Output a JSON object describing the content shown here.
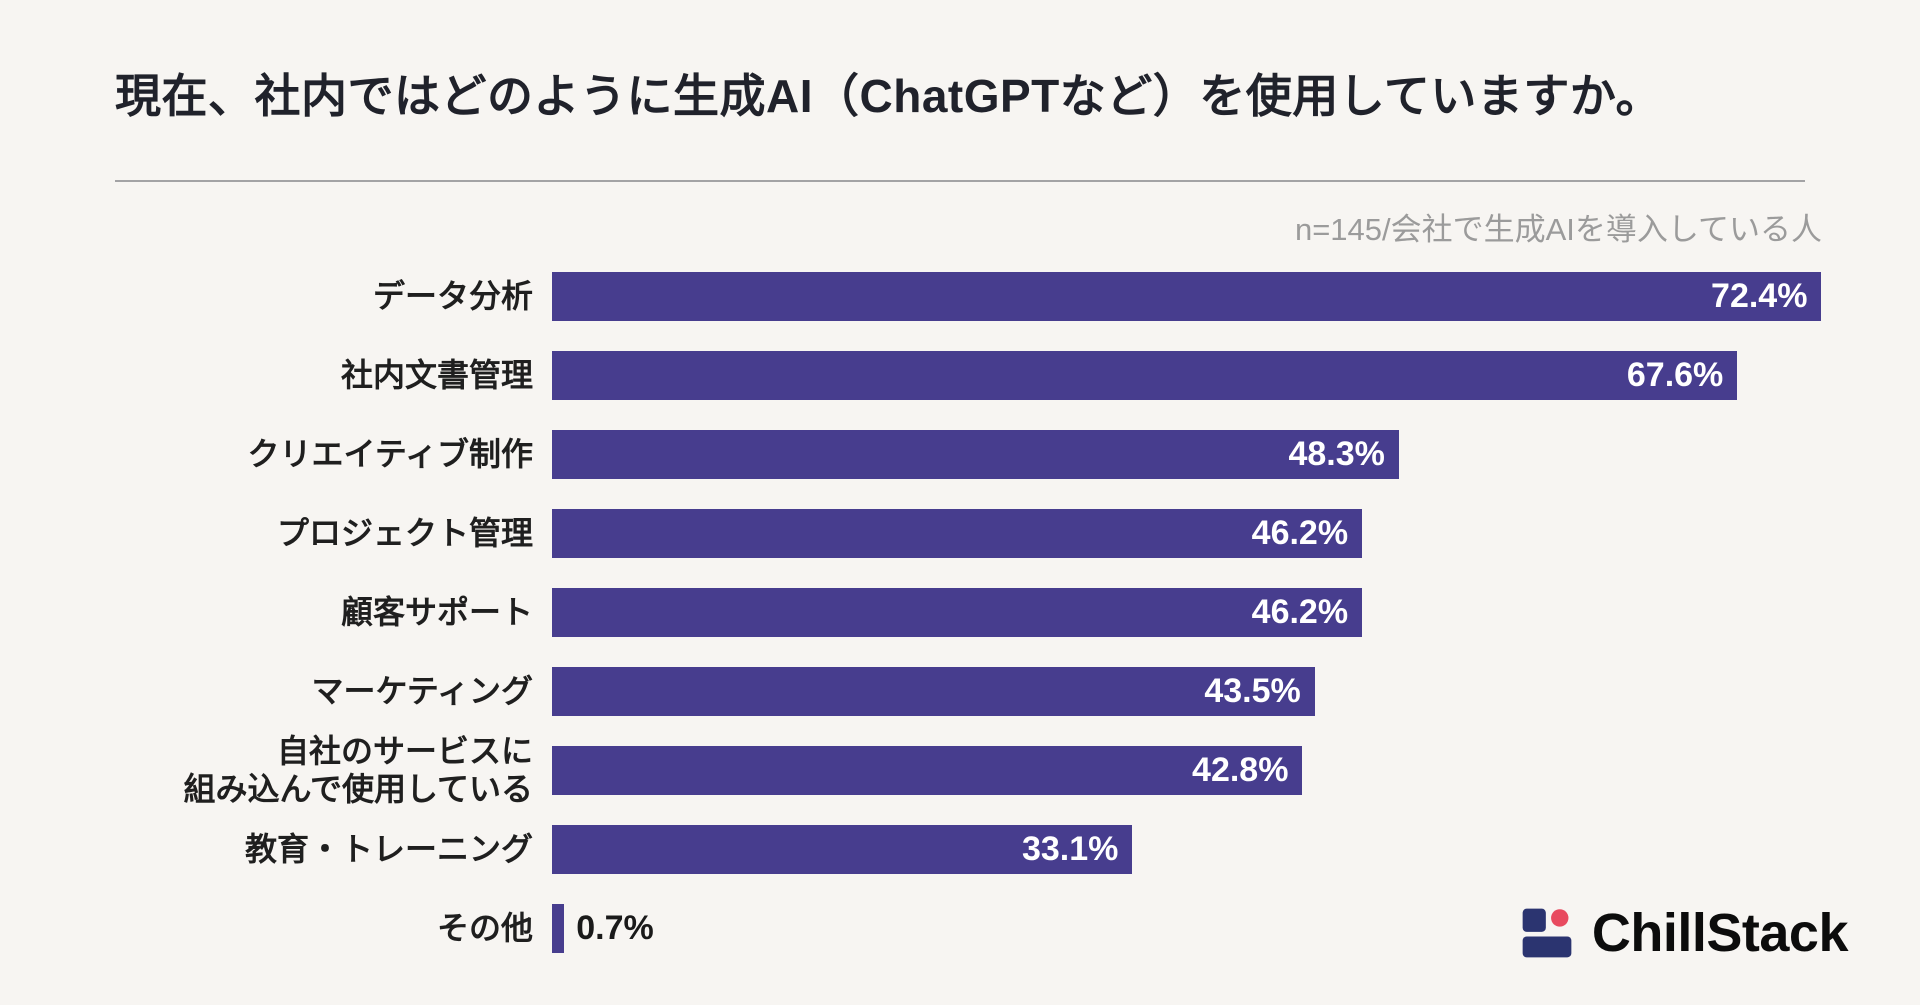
{
  "page": {
    "background": "#f7f5f2"
  },
  "header": {
    "title": "現在、社内ではどのように生成AI（ChatGPTなど）を使用していますか。",
    "sample_note": "n=145/会社で生成AIを導入している人"
  },
  "chart_data": {
    "type": "bar",
    "orientation": "horizontal",
    "title": "現在、社内ではどのように生成AI（ChatGPTなど）を使用していますか。",
    "annotation": "n=145/会社で生成AIを導入している人",
    "categories": [
      "データ分析",
      "社内文書管理",
      "クリエイティブ制作",
      "プロジェクト管理",
      "顧客サポート",
      "マーケティング",
      "自社のサービスに\n組み込んで使用している",
      "教育・トレーニング",
      "その他"
    ],
    "values": [
      72.4,
      67.6,
      48.3,
      46.2,
      46.2,
      43.5,
      42.8,
      33.1,
      0.7
    ],
    "value_labels": [
      "72.4%",
      "67.6%",
      "48.3%",
      "46.2%",
      "46.2%",
      "43.5%",
      "42.8%",
      "33.1%",
      "0.7%"
    ],
    "unit": "%",
    "xlim": [
      0,
      100
    ],
    "grid": false,
    "legend": false,
    "bar_color": "#473d8e",
    "value_label_color_inside": "#ffffff",
    "value_label_color_outside": "#1a1a1a"
  },
  "logo": {
    "text": "ChillStack",
    "icon": "chillstack-stack-icon",
    "icon_color": "#2b3470",
    "icon_dot_color": "#e84a5f"
  }
}
